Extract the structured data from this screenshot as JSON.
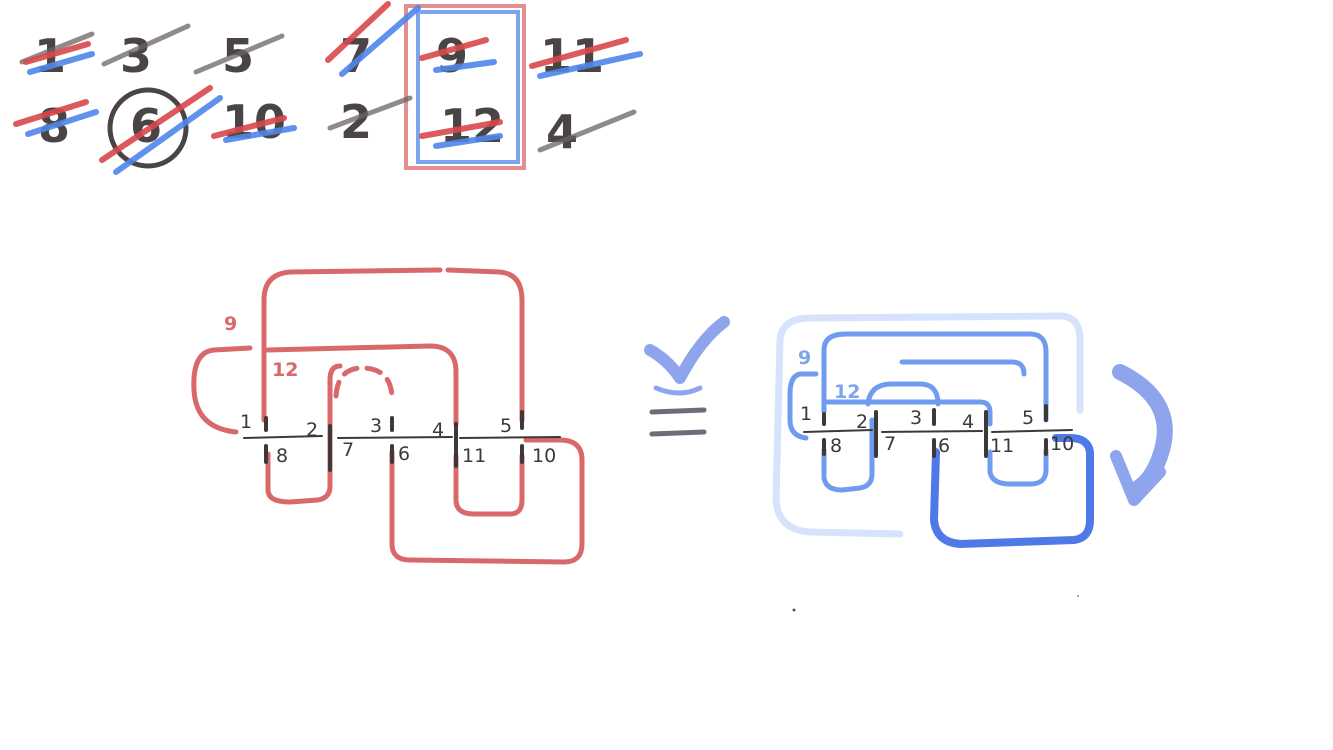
{
  "number_grid": {
    "row1": [
      "1",
      "3",
      "5",
      "7",
      "9",
      "11"
    ],
    "row2": [
      "8",
      "6",
      "10",
      "2",
      "12",
      "4"
    ]
  },
  "red_knot": {
    "crossing_labels": [
      "1",
      "2",
      "3",
      "4",
      "5"
    ],
    "under_labels": [
      "8",
      "7",
      "6",
      "11",
      "10"
    ],
    "arc_labels": [
      "9",
      "12"
    ]
  },
  "blue_knot": {
    "crossing_labels": [
      "1",
      "2",
      "3",
      "4",
      "5"
    ],
    "under_labels": [
      "8",
      "7",
      "6",
      "11",
      "10"
    ],
    "arc_labels": [
      "9",
      "12"
    ]
  },
  "colors": {
    "red": "#d9686a",
    "blue": "#6f9cee",
    "ink": "#3f3838"
  },
  "icons": [
    "checkmark-icon",
    "equivalence-icon",
    "rotate-arrow-icon"
  ]
}
